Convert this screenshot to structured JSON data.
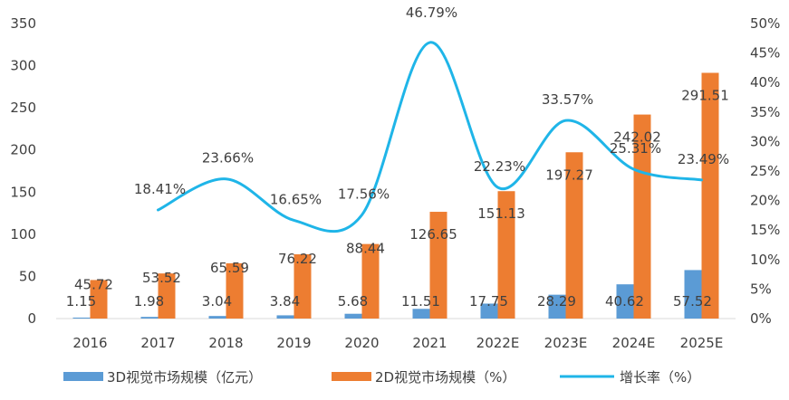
{
  "chart_data": {
    "type": "bar+line",
    "categories": [
      "2016",
      "2017",
      "2018",
      "2019",
      "2020",
      "2021",
      "2022E",
      "2023E",
      "2024E",
      "2025E"
    ],
    "series": [
      {
        "name": "3D视觉市场规模（亿元）",
        "type": "bar",
        "axis": "left",
        "color": "#5b9bd5",
        "values": [
          1.15,
          1.98,
          3.04,
          3.84,
          5.68,
          11.51,
          17.75,
          28.29,
          40.62,
          57.52
        ],
        "labels": [
          "1.15",
          "1.98",
          "3.04",
          "3.84",
          "5.68",
          "11.51",
          "17.75",
          "28.29",
          "40.62",
          "57.52"
        ]
      },
      {
        "name": "2D视觉市场规模（%）",
        "type": "bar",
        "axis": "left",
        "color": "#ed7d31",
        "values": [
          45.72,
          53.52,
          65.59,
          76.22,
          88.44,
          126.65,
          151.13,
          197.27,
          242.02,
          291.51
        ],
        "labels": [
          "45.72",
          "53.52",
          "65.59",
          "76.22",
          "88.44",
          "126.65",
          "151.13",
          "197.27",
          "242.02",
          "291.51"
        ]
      },
      {
        "name": "增长率（%）",
        "type": "line",
        "axis": "right",
        "color": "#1fb5e8",
        "values": [
          null,
          18.41,
          23.66,
          16.65,
          17.56,
          46.79,
          22.23,
          33.57,
          25.31,
          23.49
        ],
        "labels": [
          "",
          "18.41%",
          "23.66%",
          "16.65%",
          "17.56%",
          "46.79%",
          "22.23%",
          "33.57%",
          "25.31%",
          "23.49%"
        ]
      }
    ],
    "y_left": {
      "min": 0,
      "max": 350,
      "step": 50,
      "ticks": [
        "0",
        "50",
        "100",
        "150",
        "200",
        "250",
        "300",
        "350"
      ]
    },
    "y_right": {
      "min": 0,
      "max": 50,
      "step": 5,
      "ticks": [
        "0%",
        "5%",
        "10%",
        "15%",
        "20%",
        "25%",
        "30%",
        "35%",
        "40%",
        "45%",
        "50%"
      ]
    },
    "grid": false,
    "legend_position": "bottom"
  }
}
